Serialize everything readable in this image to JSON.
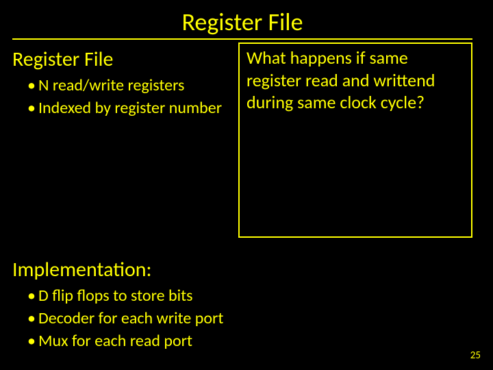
{
  "colors": {
    "background": "#000000",
    "text": "#ffff00",
    "rule": "#ffff00",
    "box_border": "#ffff00"
  },
  "title": "Register File",
  "subtitle": "Register File",
  "left_bullets": [
    "N read/write registers",
    "Indexed by register number"
  ],
  "callout_box": "What happens if same register read and writtend during same clock cycle?",
  "impl_title": "Implementation:",
  "impl_bullets": [
    "D flip flops to store bits",
    "Decoder for each write port",
    "Mux for each read port"
  ],
  "page_number": "25",
  "typography": {
    "title_fontsize": 36,
    "subtitle_fontsize": 30,
    "bullet_fontsize": 24,
    "box_fontsize": 26,
    "pagenum_fontsize": 15,
    "font_family": "Calibri"
  }
}
